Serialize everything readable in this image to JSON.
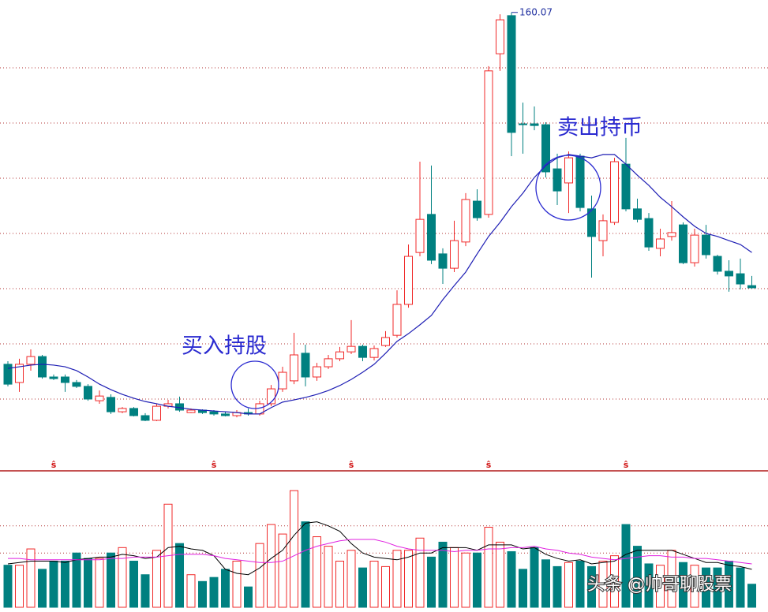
{
  "chart_data": [
    {
      "type": "candlestick",
      "open": [
        32.6,
        26.0,
        32.6,
        35.4,
        28.0,
        28.0,
        26.0,
        24.6,
        19.4,
        20.6,
        15.4,
        16.6,
        14.0,
        12.3,
        17.4,
        18.3,
        15.1,
        16.0,
        15.4,
        14.6,
        14.0,
        15.1,
        14.6,
        18.3,
        23.7,
        26.6,
        36.6,
        28.0,
        31.7,
        34.6,
        37.1,
        39.1,
        35.1,
        39.4,
        43.1,
        54.3,
        73.1,
        86.9,
        72.6,
        67.4,
        76.9,
        91.7,
        86.9,
        145.1,
        158.9,
        119.7,
        119.7,
        119.4,
        103.4,
        98.3,
        108.0,
        88.9,
        77.4,
        84.0,
        105.1,
        88.9,
        85.4,
        74.6,
        78.9,
        83.1,
        69.4,
        79.4,
        71.7,
        66.3,
        65.4,
        61.1
      ],
      "high": [
        33.7,
        34.6,
        38.0,
        36.0,
        28.9,
        28.9,
        26.9,
        25.4,
        23.1,
        21.7,
        17.1,
        17.1,
        14.9,
        18.3,
        19.7,
        20.9,
        16.6,
        16.3,
        16.0,
        15.4,
        16.0,
        16.6,
        19.4,
        25.1,
        31.7,
        44.0,
        39.7,
        33.1,
        36.0,
        38.9,
        48.6,
        39.7,
        39.4,
        44.6,
        59.4,
        76.0,
        106.0,
        104.6,
        74.6,
        84.6,
        94.6,
        96.0,
        140.6,
        159.4,
        160.07,
        127.4,
        126.0,
        120.3,
        108.9,
        109.7,
        108.9,
        93.7,
        86.9,
        107.4,
        114.6,
        92.6,
        87.4,
        81.7,
        91.7,
        84.0,
        81.7,
        83.1,
        72.3,
        70.3,
        70.9,
        64.6
      ],
      "low": [
        24.6,
        22.6,
        30.3,
        27.4,
        26.9,
        22.6,
        24.0,
        19.4,
        18.3,
        14.6,
        14.9,
        13.7,
        12.0,
        12.0,
        16.6,
        15.4,
        14.9,
        14.6,
        14.0,
        13.7,
        13.4,
        14.0,
        14.0,
        17.4,
        22.6,
        25.4,
        24.6,
        26.6,
        30.9,
        33.7,
        36.3,
        33.7,
        34.0,
        38.9,
        42.3,
        53.1,
        71.7,
        68.9,
        61.7,
        66.0,
        75.4,
        84.6,
        85.7,
        138.9,
        108.0,
        108.9,
        117.4,
        100.3,
        90.3,
        87.4,
        88.0,
        64.0,
        71.7,
        83.1,
        88.0,
        84.0,
        73.7,
        71.7,
        77.4,
        68.9,
        68.0,
        70.9,
        65.1,
        58.9,
        59.7,
        60.0
      ],
      "close": [
        25.4,
        32.6,
        35.4,
        28.0,
        27.4,
        26.0,
        24.6,
        20.0,
        21.1,
        15.4,
        16.6,
        14.0,
        12.3,
        17.4,
        18.3,
        16.0,
        16.0,
        15.1,
        14.6,
        14.0,
        15.1,
        14.6,
        18.3,
        23.7,
        29.7,
        36.0,
        28.0,
        31.7,
        34.6,
        37.1,
        39.1,
        35.1,
        38.3,
        42.3,
        54.3,
        71.7,
        85.1,
        70.3,
        67.4,
        77.4,
        92.3,
        85.7,
        138.9,
        157.4,
        116.6,
        119.4,
        119.1,
        102.3,
        95.4,
        107.4,
        89.4,
        78.9,
        84.6,
        106.0,
        88.9,
        85.1,
        75.1,
        78.0,
        80.3,
        69.4,
        79.4,
        72.3,
        66.3,
        64.6,
        61.7,
        60.3
      ],
      "up_color": "#f02828",
      "down_color": "#008080",
      "ma": {
        "color": "#1e1eb4",
        "values": [
          31.1,
          31.7,
          32.3,
          32.6,
          32.3,
          31.7,
          30.3,
          28.0,
          25.4,
          23.4,
          21.7,
          20.3,
          19.1,
          18.3,
          17.4,
          16.9,
          16.3,
          16.0,
          15.7,
          15.4,
          15.1,
          14.6,
          14.6,
          16.9,
          18.9,
          19.7,
          20.6,
          21.7,
          23.1,
          24.9,
          27.1,
          29.7,
          32.6,
          36.6,
          40.9,
          43.7,
          46.9,
          50.3,
          56.0,
          61.1,
          66.0,
          72.6,
          78.9,
          84.0,
          89.7,
          94.6,
          100.3,
          104.6,
          107.4,
          108.6,
          108.0,
          107.4,
          108.6,
          108.6,
          105.1,
          101.1,
          97.4,
          93.1,
          89.7,
          86.0,
          82.6,
          80.0,
          78.9,
          77.4,
          76.0,
          73.1
        ]
      },
      "ylim": [
        0,
        164
      ],
      "ygrid": [
        20,
        40,
        60,
        80,
        100,
        120,
        140
      ],
      "grid": true,
      "event_marker": "ŝ",
      "annotations": [
        "买入持股",
        "卖出持币"
      ]
    },
    {
      "type": "bar",
      "values": [
        31,
        31,
        43,
        28,
        34,
        34,
        40,
        36,
        36,
        40,
        44,
        34,
        24,
        42,
        76,
        47,
        24,
        19,
        22,
        28,
        34,
        15,
        47,
        61,
        54,
        86,
        63,
        52,
        45,
        34,
        42,
        29,
        34,
        30,
        42,
        42,
        51,
        37,
        48,
        44,
        40,
        40,
        59,
        48,
        41,
        28,
        44,
        35,
        30,
        33,
        34,
        30,
        34,
        38,
        61,
        45,
        32,
        31,
        42,
        33,
        31,
        29,
        29,
        34,
        29,
        17
      ],
      "series": [
        {
          "color": "#000000",
          "values": [
            32,
            33,
            34,
            34,
            34,
            33,
            35,
            36,
            37,
            37,
            39,
            38,
            36,
            37,
            44,
            45,
            43,
            42,
            38,
            28,
            25,
            24,
            29,
            36,
            42,
            53,
            62,
            63,
            60,
            56,
            47,
            40,
            37,
            36,
            35,
            37,
            40,
            40,
            44,
            44,
            44,
            42,
            46,
            46,
            46,
            43,
            44,
            39,
            36,
            34,
            35,
            32,
            33,
            34,
            39,
            42,
            42,
            42,
            42,
            39,
            36,
            33,
            33,
            31,
            30,
            28
          ]
        },
        {
          "color": "#e020e0",
          "values": [
            36,
            36,
            35,
            35,
            35,
            35,
            35,
            35,
            35,
            36,
            36,
            37,
            37,
            37,
            38,
            39,
            39,
            39,
            38,
            36,
            35,
            34,
            33,
            33,
            34,
            38,
            42,
            45,
            47,
            49,
            50,
            50,
            50,
            48,
            45,
            43,
            42,
            42,
            42,
            41,
            42,
            42,
            43,
            43,
            44,
            44,
            45,
            43,
            42,
            40,
            39,
            37,
            36,
            35,
            36,
            37,
            38,
            38,
            37,
            37,
            36,
            36,
            35,
            34,
            33,
            32
          ]
        }
      ],
      "ylim": [
        0,
        100
      ],
      "ygrid": [
        40,
        60
      ],
      "grid": true
    }
  ],
  "watermark": "头条 @帅哥聊股票"
}
